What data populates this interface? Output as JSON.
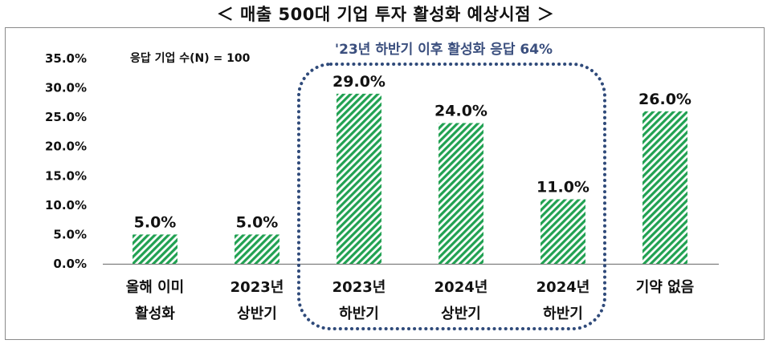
{
  "title": "＜ 매출 500대 기업 투자 활성화 예상시점 ＞",
  "note": "응답 기업 수(N) = 100",
  "group_label": "'23년 하반기 이후 활성화 응답 64%",
  "colors": {
    "bar": "#21a152",
    "group_outline": "#2f4a7a",
    "group_text": "#3b4f7e",
    "frame": "#8a8a8a"
  },
  "chart_data": {
    "type": "bar",
    "categories": [
      [
        "올해 이미",
        "활성화"
      ],
      [
        "2023년",
        "상반기"
      ],
      [
        "2023년",
        "하반기"
      ],
      [
        "2024년",
        "상반기"
      ],
      [
        "2024년",
        "하반기"
      ],
      [
        "기약 없음"
      ]
    ],
    "values": [
      5.0,
      5.0,
      29.0,
      24.0,
      11.0,
      26.0
    ],
    "data_labels": [
      "5.0%",
      "5.0%",
      "29.0%",
      "24.0%",
      "11.0%",
      "26.0%"
    ],
    "ylim": [
      0,
      35
    ],
    "yticks": [
      "0.0%",
      "5.0%",
      "10.0%",
      "15.0%",
      "20.0%",
      "25.0%",
      "30.0%",
      "35.0%"
    ],
    "grid": false,
    "highlight_group": [
      2,
      4
    ]
  }
}
